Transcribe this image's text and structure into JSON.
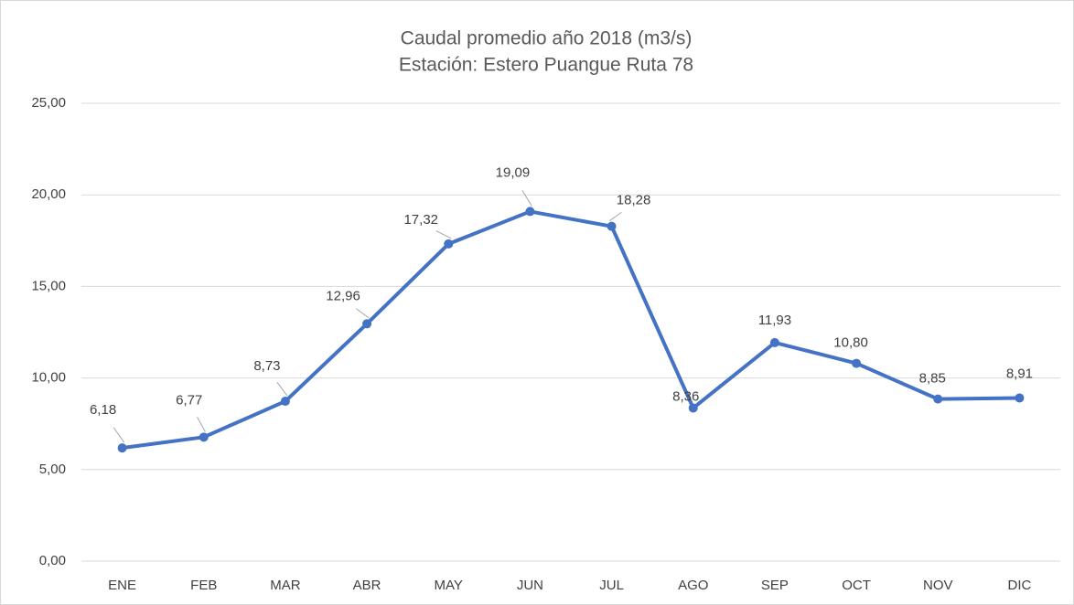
{
  "chart_data": {
    "type": "line",
    "title": "Caudal promedio año 2018 (m3/s)",
    "subtitle": "Estación: Estero Puangue Ruta 78",
    "categories": [
      "ENE",
      "FEB",
      "MAR",
      "ABR",
      "MAY",
      "JUN",
      "JUL",
      "AGO",
      "SEP",
      "OCT",
      "NOV",
      "DIC"
    ],
    "series": [
      {
        "color": "#4472c4",
        "values": [
          6.18,
          6.77,
          8.73,
          12.96,
          17.32,
          19.09,
          18.28,
          8.36,
          11.93,
          10.8,
          8.85,
          8.91
        ],
        "value_labels": [
          "6,18",
          "6,77",
          "8,73",
          "12,96",
          "17,32",
          "19,09",
          "18,28",
          "8,36",
          "11,93",
          "10,80",
          "8,85",
          "8,91"
        ]
      }
    ],
    "ylim": [
      0,
      25
    ],
    "yticks": [
      {
        "value": 0,
        "label": "0,00"
      },
      {
        "value": 5,
        "label": "5,00"
      },
      {
        "value": 10,
        "label": "10,00"
      },
      {
        "value": 15,
        "label": "15,00"
      },
      {
        "value": 20,
        "label": "20,00"
      },
      {
        "value": 25,
        "label": "25,00"
      }
    ],
    "grid": true
  }
}
